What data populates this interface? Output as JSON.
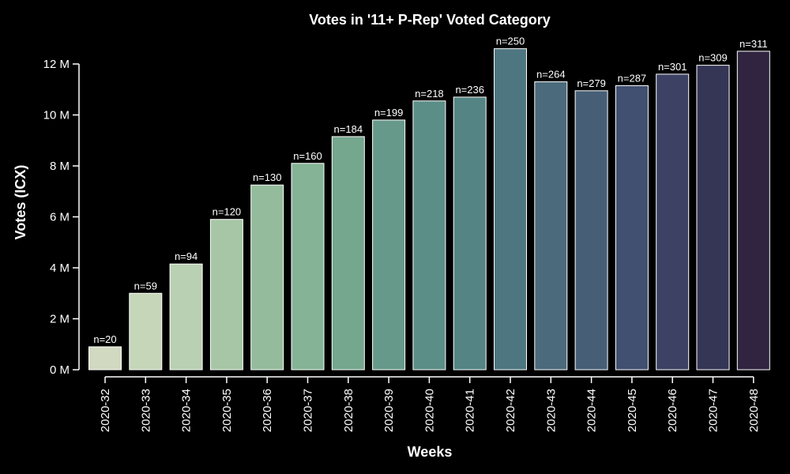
{
  "chart_data": {
    "type": "bar",
    "title": "Votes in '11+ P-Rep' Voted Category",
    "xlabel": "Weeks",
    "ylabel": "Votes (ICX)",
    "categories": [
      "2020-32",
      "2020-33",
      "2020-34",
      "2020-35",
      "2020-36",
      "2020-37",
      "2020-38",
      "2020-39",
      "2020-40",
      "2020-41",
      "2020-42",
      "2020-43",
      "2020-44",
      "2020-45",
      "2020-46",
      "2020-47",
      "2020-48"
    ],
    "values": [
      0.9,
      3.0,
      4.15,
      5.9,
      7.25,
      8.1,
      9.15,
      9.8,
      10.55,
      10.7,
      12.6,
      11.3,
      10.95,
      11.15,
      11.6,
      11.95,
      12.5
    ],
    "value_unit": "M",
    "bar_labels": [
      "n=20",
      "n=59",
      "n=94",
      "n=120",
      "n=130",
      "n=160",
      "n=184",
      "n=199",
      "n=218",
      "n=236",
      "n=250",
      "n=264",
      "n=279",
      "n=287",
      "n=301",
      "n=309",
      "n=311"
    ],
    "ylim": [
      0,
      12.0
    ],
    "yticks": [
      0,
      2,
      4,
      6,
      8,
      10,
      12
    ],
    "ytick_labels": [
      "0 M",
      "2 M",
      "4 M",
      "6 M",
      "8 M",
      "10 M",
      "12 M"
    ],
    "grid": false,
    "colors": [
      "#d2d9c1",
      "#c6d6b9",
      "#b9d0b2",
      "#a6c6a5",
      "#94bc9c",
      "#84b495",
      "#74a78e",
      "#67998a",
      "#5c8e88",
      "#548584",
      "#4e7681",
      "#4b6a7c",
      "#465f76",
      "#414f70",
      "#3d4264",
      "#353656",
      "#302440"
    ]
  }
}
